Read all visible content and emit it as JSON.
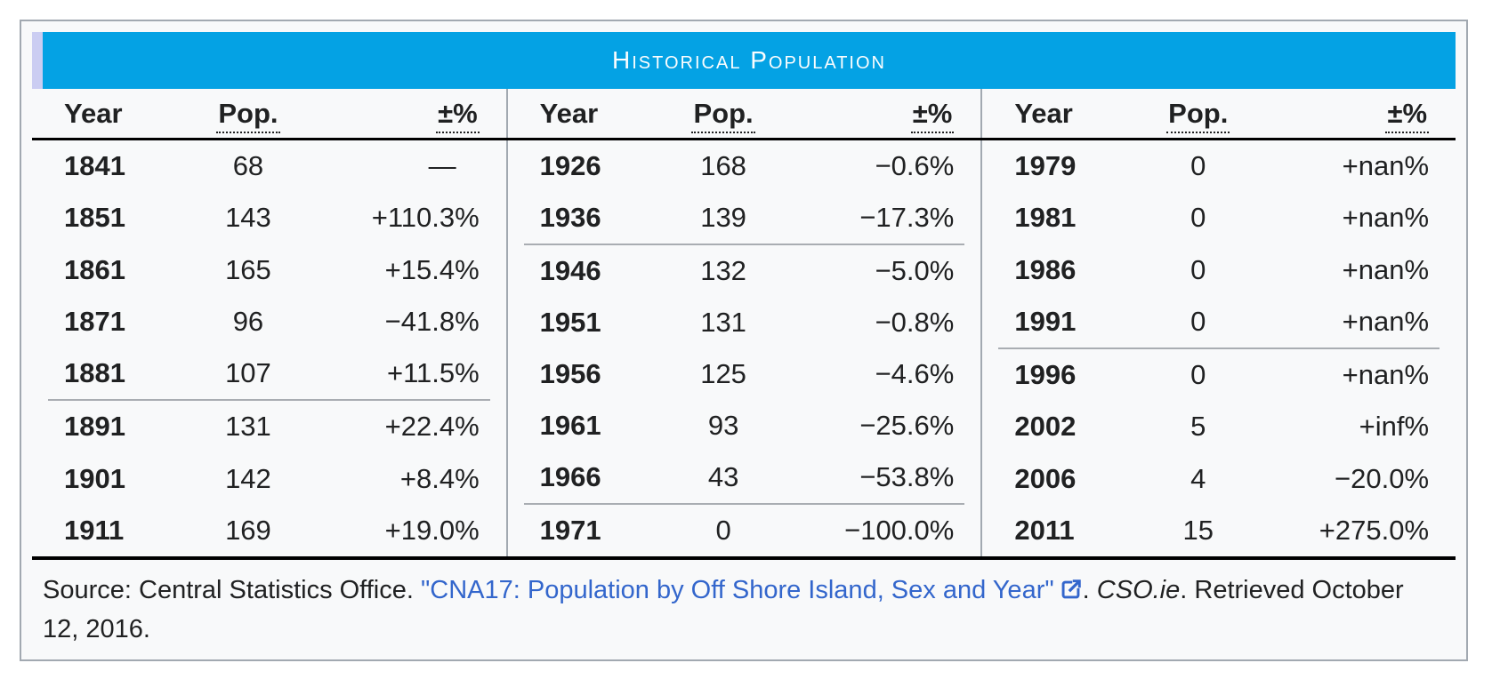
{
  "title": "Historical Population",
  "theme": {
    "header_bg": "#04a2e4",
    "header_accent_strip": "#cbcdf2",
    "table_bg": "#f8f9fa",
    "border": "#a2a9b1",
    "text": "#202122",
    "link": "#3366cc"
  },
  "columns": {
    "year": "Year",
    "pop": "Pop.",
    "change": "±%"
  },
  "groups": [
    {
      "rows": [
        {
          "year": "1841",
          "pop": "68",
          "change": "—"
        },
        {
          "year": "1851",
          "pop": "143",
          "change": "+110.3%"
        },
        {
          "year": "1861",
          "pop": "165",
          "change": "+15.4%"
        },
        {
          "year": "1871",
          "pop": "96",
          "change": "−41.8%"
        },
        {
          "year": "1881",
          "pop": "107",
          "change": "+11.5%"
        },
        {
          "year": "1891",
          "pop": "131",
          "change": "+22.4%",
          "section_break": true
        },
        {
          "year": "1901",
          "pop": "142",
          "change": "+8.4%"
        },
        {
          "year": "1911",
          "pop": "169",
          "change": "+19.0%"
        }
      ]
    },
    {
      "rows": [
        {
          "year": "1926",
          "pop": "168",
          "change": "−0.6%"
        },
        {
          "year": "1936",
          "pop": "139",
          "change": "−17.3%"
        },
        {
          "year": "1946",
          "pop": "132",
          "change": "−5.0%",
          "section_break": true
        },
        {
          "year": "1951",
          "pop": "131",
          "change": "−0.8%"
        },
        {
          "year": "1956",
          "pop": "125",
          "change": "−4.6%"
        },
        {
          "year": "1961",
          "pop": "93",
          "change": "−25.6%"
        },
        {
          "year": "1966",
          "pop": "43",
          "change": "−53.8%"
        },
        {
          "year": "1971",
          "pop": "0",
          "change": "−100.0%",
          "section_break": true
        }
      ]
    },
    {
      "rows": [
        {
          "year": "1979",
          "pop": "0",
          "change": "+nan%"
        },
        {
          "year": "1981",
          "pop": "0",
          "change": "+nan%"
        },
        {
          "year": "1986",
          "pop": "0",
          "change": "+nan%"
        },
        {
          "year": "1991",
          "pop": "0",
          "change": "+nan%"
        },
        {
          "year": "1996",
          "pop": "0",
          "change": "+nan%",
          "section_break": true
        },
        {
          "year": "2002",
          "pop": "5",
          "change": "+inf%"
        },
        {
          "year": "2006",
          "pop": "4",
          "change": "−20.0%"
        },
        {
          "year": "2011",
          "pop": "15",
          "change": "+275.0%"
        }
      ]
    }
  ],
  "source": {
    "prefix": "Source: Central Statistics Office. ",
    "link_text": "\"CNA17: Population by Off Shore Island, Sex and Year\"",
    "between": ". ",
    "publisher": "CSO.ie",
    "suffix": ". Retrieved October 12, 2016."
  }
}
